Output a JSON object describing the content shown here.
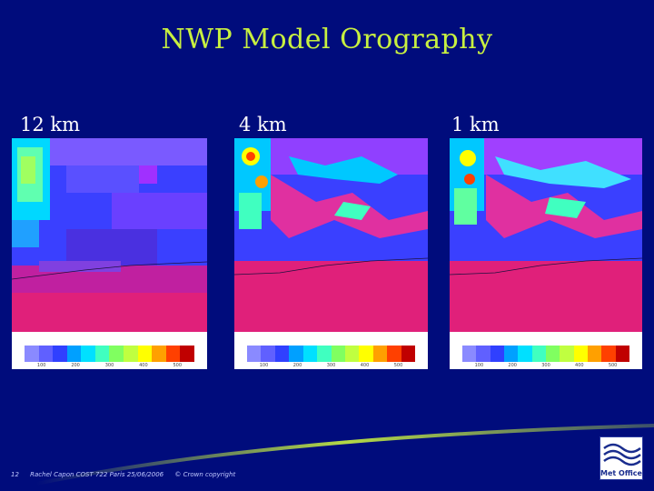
{
  "slide": {
    "title": "NWP Model Orography",
    "page_number": "12",
    "author_event": "Rachel Capon COST 722 Paris 25/06/2006",
    "copyright": "© Crown copyright",
    "logo_text": "Met Office"
  },
  "panels": [
    {
      "label": "12 km"
    },
    {
      "label": "4 km"
    },
    {
      "label": "1 km"
    }
  ],
  "colorbar": {
    "colors": [
      "#8a8aff",
      "#6060ff",
      "#3040ff",
      "#00a0ff",
      "#00e0ff",
      "#40ffc0",
      "#80ff60",
      "#c0ff40",
      "#ffff00",
      "#ffa000",
      "#ff4000",
      "#c00000"
    ],
    "ticks": [
      "100",
      "200",
      "300",
      "400",
      "500"
    ]
  },
  "colors": {
    "background": "#000c7c",
    "title": "#c8f040",
    "sea": "#e0207a"
  }
}
